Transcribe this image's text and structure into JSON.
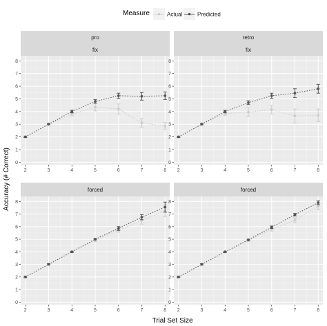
{
  "chart_data": {
    "type": "line",
    "xlabel": "Trial Set Size",
    "ylabel": "Accuracy (# Correct)",
    "x": [
      2,
      3,
      4,
      5,
      6,
      7,
      8
    ],
    "xlim": [
      1.8,
      8.2
    ],
    "ylim": [
      -0.2,
      8.4
    ],
    "yticks": [
      0,
      1,
      2,
      3,
      4,
      5,
      6,
      7,
      8
    ],
    "grid": true,
    "legend": {
      "title": "Measure",
      "placement": "top",
      "entries": [
        {
          "name": "Actual",
          "color": "#cccccc"
        },
        {
          "name": "Predicted",
          "color": "#555555"
        }
      ]
    },
    "panels": [
      {
        "row": 0,
        "col": 0,
        "strips": [
          "pro",
          "fix"
        ],
        "series": [
          {
            "name": "Actual",
            "values": [
              2.0,
              3.0,
              3.8,
              4.35,
              4.2,
              3.1,
              2.85
            ],
            "err": [
              0.05,
              0.05,
              0.15,
              0.3,
              0.4,
              0.35,
              0.3
            ]
          },
          {
            "name": "Predicted",
            "values": [
              2.0,
              3.0,
              4.0,
              4.8,
              5.25,
              5.2,
              5.25
            ],
            "err": [
              0.05,
              0.05,
              0.1,
              0.15,
              0.2,
              0.3,
              0.3
            ]
          }
        ]
      },
      {
        "row": 0,
        "col": 1,
        "strips": [
          "retro",
          "fix"
        ],
        "series": [
          {
            "name": "Actual",
            "values": [
              2.0,
              3.0,
              3.85,
              3.95,
              4.15,
              3.65,
              3.7
            ],
            "err": [
              0.05,
              0.05,
              0.15,
              0.35,
              0.35,
              0.55,
              0.5
            ]
          },
          {
            "name": "Predicted",
            "values": [
              2.0,
              3.0,
              4.0,
              4.7,
              5.25,
              5.45,
              5.8
            ],
            "err": [
              0.05,
              0.05,
              0.1,
              0.15,
              0.2,
              0.35,
              0.35
            ]
          }
        ]
      },
      {
        "row": 1,
        "col": 0,
        "strips": [
          "forced"
        ],
        "series": [
          {
            "name": "Actual",
            "values": [
              2.0,
              3.0,
              4.0,
              4.9,
              5.7,
              6.5,
              7.25
            ],
            "err": [
              0.05,
              0.05,
              0.05,
              0.1,
              0.15,
              0.3,
              0.45
            ]
          },
          {
            "name": "Predicted",
            "values": [
              2.0,
              3.0,
              4.0,
              5.0,
              5.85,
              6.75,
              7.55
            ],
            "err": [
              0.05,
              0.05,
              0.05,
              0.05,
              0.15,
              0.2,
              0.4
            ]
          }
        ]
      },
      {
        "row": 1,
        "col": 1,
        "strips": [
          "forced"
        ],
        "series": [
          {
            "name": "Actual",
            "values": [
              2.0,
              3.0,
              4.0,
              4.9,
              5.8,
              6.5,
              7.65
            ],
            "err": [
              0.05,
              0.05,
              0.05,
              0.1,
              0.15,
              0.2,
              0.3
            ]
          },
          {
            "name": "Predicted",
            "values": [
              2.0,
              3.0,
              4.0,
              4.95,
              5.95,
              6.95,
              7.9
            ],
            "err": [
              0.05,
              0.05,
              0.05,
              0.05,
              0.1,
              0.1,
              0.15
            ]
          }
        ]
      }
    ]
  }
}
